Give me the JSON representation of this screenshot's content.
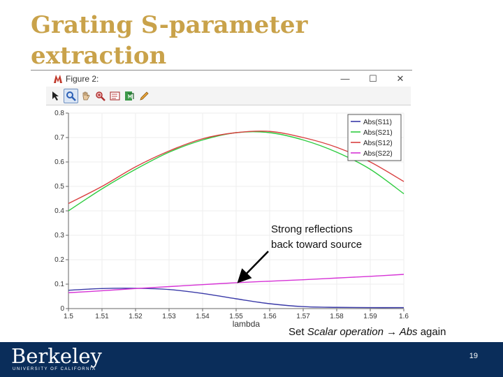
{
  "slide": {
    "title": "Grating S-parameter extraction",
    "page_number": "19"
  },
  "window": {
    "title": "Figure 2:",
    "minimize_glyph": "—",
    "maximize_glyph": "☐",
    "close_glyph": "✕"
  },
  "toolbar": {
    "buttons": [
      {
        "icon": "select-arrow-icon",
        "active": false
      },
      {
        "icon": "zoom-icon",
        "active": true
      },
      {
        "icon": "pan-hand-icon",
        "active": false
      },
      {
        "icon": "zoom-extents-icon",
        "active": false
      },
      {
        "icon": "legend-icon",
        "active": false
      },
      {
        "icon": "export-icon",
        "active": false
      },
      {
        "icon": "pencil-icon",
        "active": false
      }
    ]
  },
  "annotations": {
    "reflection_line1": "Strong reflections",
    "reflection_line2": "back toward source",
    "bottom_prefix": "Set ",
    "bottom_italic": "Scalar operation → Abs",
    "bottom_suffix": " again"
  },
  "branding": {
    "name": "Berkeley",
    "subtitle": "UNIVERSITY OF CALIFORNIA"
  },
  "chart_data": {
    "type": "line",
    "xlabel": "lambda",
    "ylabel": "",
    "xlim": [
      1.5,
      1.6
    ],
    "ylim": [
      0,
      0.8
    ],
    "xticks": [
      1.5,
      1.51,
      1.52,
      1.53,
      1.54,
      1.55,
      1.56,
      1.57,
      1.58,
      1.59,
      1.6
    ],
    "xtick_labels": [
      "1.5",
      "1.51",
      "1.52",
      "1.53",
      "1.54",
      "1.55",
      "1.56",
      "1.57",
      "1.58",
      "1.59",
      "1.6"
    ],
    "yticks": [
      0,
      0.1,
      0.2,
      0.3,
      0.4,
      0.5,
      0.6,
      0.7,
      0.8
    ],
    "ytick_labels": [
      "0",
      "0.1",
      "0.2",
      "0.3",
      "0.4",
      "0.5",
      "0.6",
      "0.7",
      "0.8"
    ],
    "legend_position": "top-right",
    "x": [
      1.5,
      1.51,
      1.52,
      1.53,
      1.54,
      1.55,
      1.56,
      1.57,
      1.58,
      1.59,
      1.6
    ],
    "series": [
      {
        "name": "Abs(S11)",
        "color": "#3a3aa8",
        "values": [
          0.075,
          0.082,
          0.083,
          0.078,
          0.062,
          0.04,
          0.02,
          0.008,
          0.005,
          0.004,
          0.004
        ]
      },
      {
        "name": "Abs(S21)",
        "color": "#2ecc40",
        "values": [
          0.4,
          0.49,
          0.57,
          0.64,
          0.69,
          0.72,
          0.72,
          0.69,
          0.64,
          0.57,
          0.47
        ]
      },
      {
        "name": "Abs(S12)",
        "color": "#d94040",
        "values": [
          0.43,
          0.5,
          0.58,
          0.645,
          0.695,
          0.72,
          0.725,
          0.7,
          0.66,
          0.6,
          0.52
        ]
      },
      {
        "name": "Abs(S22)",
        "color": "#d633d6",
        "values": [
          0.065,
          0.073,
          0.082,
          0.09,
          0.098,
          0.106,
          0.112,
          0.118,
          0.125,
          0.132,
          0.14
        ]
      }
    ]
  }
}
